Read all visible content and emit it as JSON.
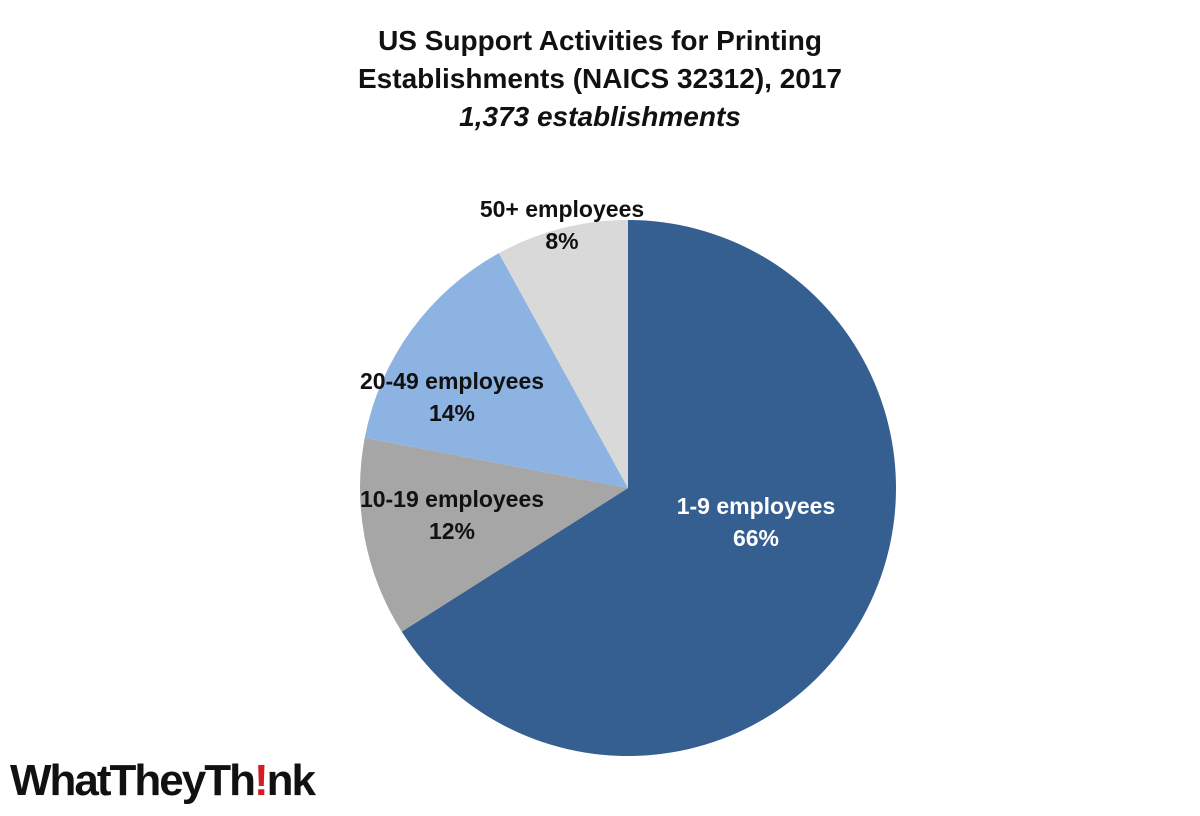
{
  "chart_data": {
    "type": "pie",
    "title_lines": [
      "US Support Activities for Printing",
      "Establishments (NAICS 32312), 2017"
    ],
    "subtitle": "1,373 establishments",
    "start_angle_deg": 0,
    "direction": "clockwise",
    "slices": [
      {
        "label": "1-9 employees",
        "value": 66,
        "pct_label": "66%",
        "color": "#355f91",
        "text_color": "#ffffff"
      },
      {
        "label": "10-19 employees",
        "value": 12,
        "pct_label": "12%",
        "color": "#a6a6a6",
        "text_color": "#111111"
      },
      {
        "label": "20-49 employees",
        "value": 14,
        "pct_label": "14%",
        "color": "#8db3e2",
        "text_color": "#111111"
      },
      {
        "label": "50+ employees",
        "value": 8,
        "pct_label": "8%",
        "color": "#d9d9d9",
        "text_color": "#111111"
      }
    ]
  },
  "logo": {
    "text_before": "WhatTheyTh",
    "text_mark": "!",
    "text_after": "nk",
    "mark_color": "#d21f26"
  }
}
